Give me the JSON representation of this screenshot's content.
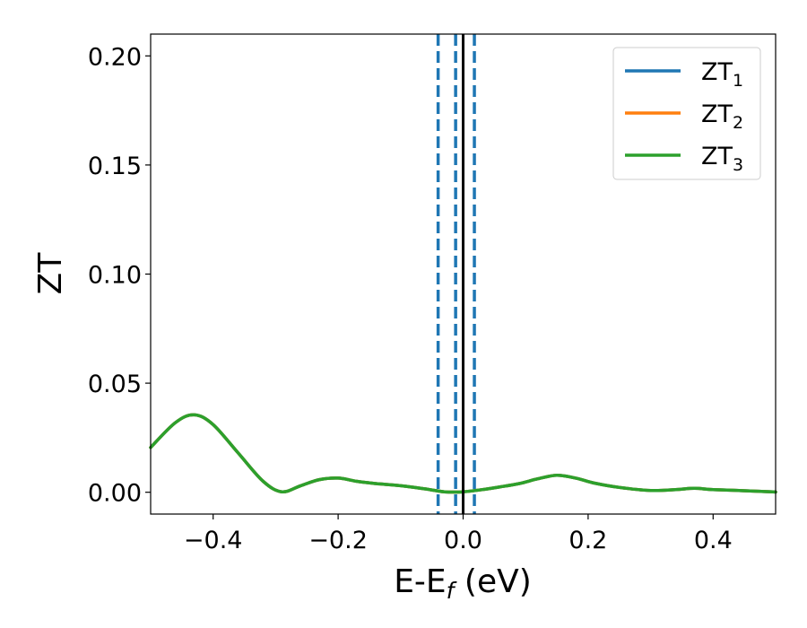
{
  "chart_data": {
    "type": "line",
    "xlabel": "E-E",
    "xlabel_sub": "f",
    "xlabel_unit": " (eV)",
    "ylabel": "ZT",
    "xlim": [
      -0.5,
      0.5
    ],
    "ylim": [
      -0.01,
      0.21
    ],
    "xticks": [
      -0.4,
      -0.2,
      0.0,
      0.2,
      0.4
    ],
    "xtick_labels": [
      "−0.4",
      "−0.2",
      "0.0",
      "0.2",
      "0.4"
    ],
    "yticks": [
      0.0,
      0.05,
      0.1,
      0.15,
      0.2
    ],
    "ytick_labels": [
      "0.00",
      "0.05",
      "0.10",
      "0.15",
      "0.20"
    ],
    "grid": false,
    "legend": "top-right",
    "series": [
      {
        "name": "ZT",
        "name_sub": "1",
        "color": "#1f77b4",
        "x": [
          -0.5,
          -0.46,
          -0.43,
          -0.4,
          -0.36,
          -0.32,
          -0.29,
          -0.26,
          -0.23,
          -0.2,
          -0.17,
          -0.14,
          -0.1,
          -0.06,
          -0.03,
          0.0,
          0.03,
          0.06,
          0.09,
          0.12,
          0.15,
          0.18,
          0.21,
          0.25,
          0.3,
          0.34,
          0.37,
          0.4,
          0.45,
          0.5
        ],
        "y": [
          0.0205,
          0.032,
          0.0355,
          0.031,
          0.018,
          0.005,
          0.0002,
          0.003,
          0.0058,
          0.0065,
          0.005,
          0.004,
          0.003,
          0.0015,
          0.0002,
          0.0002,
          0.0012,
          0.0025,
          0.004,
          0.0062,
          0.0078,
          0.0065,
          0.0042,
          0.0022,
          0.0008,
          0.0012,
          0.0018,
          0.0012,
          0.0007,
          0.0001
        ]
      },
      {
        "name": "ZT",
        "name_sub": "2",
        "color": "#ff7f0e",
        "x": [
          -0.5,
          -0.46,
          -0.43,
          -0.4,
          -0.36,
          -0.32,
          -0.29,
          -0.26,
          -0.23,
          -0.2,
          -0.17,
          -0.14,
          -0.1,
          -0.06,
          -0.03,
          0.0,
          0.03,
          0.06,
          0.09,
          0.12,
          0.15,
          0.18,
          0.21,
          0.25,
          0.3,
          0.34,
          0.37,
          0.4,
          0.45,
          0.5
        ],
        "y": [
          0.0205,
          0.032,
          0.0355,
          0.031,
          0.018,
          0.005,
          0.0002,
          0.003,
          0.0058,
          0.0065,
          0.005,
          0.004,
          0.003,
          0.0015,
          0.0002,
          0.0002,
          0.0012,
          0.0025,
          0.004,
          0.0062,
          0.0078,
          0.0065,
          0.0042,
          0.0022,
          0.0008,
          0.0012,
          0.0018,
          0.0012,
          0.0007,
          0.0001
        ]
      },
      {
        "name": "ZT",
        "name_sub": "3",
        "color": "#2ca02c",
        "x": [
          -0.5,
          -0.46,
          -0.43,
          -0.4,
          -0.36,
          -0.32,
          -0.29,
          -0.26,
          -0.23,
          -0.2,
          -0.17,
          -0.14,
          -0.1,
          -0.06,
          -0.03,
          0.0,
          0.03,
          0.06,
          0.09,
          0.12,
          0.15,
          0.18,
          0.21,
          0.25,
          0.3,
          0.34,
          0.37,
          0.4,
          0.45,
          0.5
        ],
        "y": [
          0.0205,
          0.032,
          0.0355,
          0.031,
          0.018,
          0.005,
          0.0002,
          0.003,
          0.0058,
          0.0065,
          0.005,
          0.004,
          0.003,
          0.0015,
          0.0002,
          0.0002,
          0.0012,
          0.0025,
          0.004,
          0.0062,
          0.0078,
          0.0065,
          0.0042,
          0.0022,
          0.0008,
          0.0012,
          0.0018,
          0.0012,
          0.0007,
          0.0001
        ]
      }
    ],
    "vlines": [
      {
        "x": -0.04,
        "style": "dashed",
        "color": "#1f77b4"
      },
      {
        "x": -0.012,
        "style": "dashed",
        "color": "#1f77b4"
      },
      {
        "x": 0.0,
        "style": "solid",
        "color": "#000000"
      },
      {
        "x": 0.018,
        "style": "dashed",
        "color": "#1f77b4"
      }
    ]
  }
}
